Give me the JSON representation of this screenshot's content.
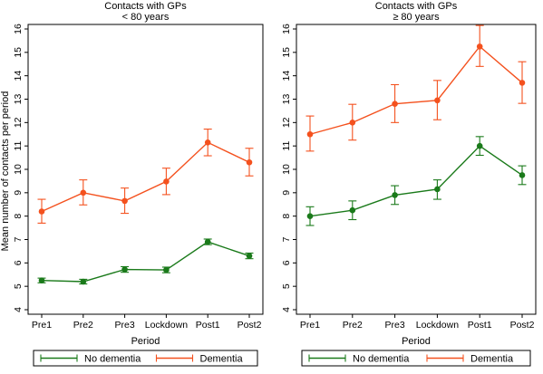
{
  "figure": {
    "ylabel": "Mean number of contacts per period"
  },
  "chart_data": [
    {
      "type": "line",
      "title": "Contacts with GPs",
      "subtitle": "< 80 years",
      "xlabel": "Period",
      "ylabel": "Mean number of contacts per period",
      "categories": [
        "Pre1",
        "Pre2",
        "Pre3",
        "Lockdown",
        "Post1",
        "Post2"
      ],
      "ylim": [
        4,
        16
      ],
      "yticks": [
        4,
        5,
        6,
        7,
        8,
        9,
        10,
        11,
        12,
        13,
        14,
        15,
        16
      ],
      "grid": false,
      "legend": "bottom",
      "series": [
        {
          "name": "No dementia",
          "color": "#1a7a1a",
          "values": [
            5.25,
            5.2,
            5.72,
            5.7,
            6.9,
            6.3
          ],
          "lower": [
            5.15,
            5.1,
            5.6,
            5.58,
            6.78,
            6.18
          ],
          "upper": [
            5.35,
            5.3,
            5.84,
            5.82,
            7.02,
            6.42
          ]
        },
        {
          "name": "Dementia",
          "color": "#f4511e",
          "values": [
            8.2,
            9.0,
            8.65,
            9.48,
            11.15,
            10.3
          ],
          "lower": [
            7.7,
            8.48,
            8.12,
            8.92,
            10.58,
            9.72
          ],
          "upper": [
            8.72,
            9.55,
            9.2,
            10.05,
            11.72,
            10.9
          ]
        }
      ]
    },
    {
      "type": "line",
      "title": "Contacts with GPs",
      "subtitle": "≥ 80 years",
      "xlabel": "Period",
      "ylabel": "",
      "categories": [
        "Pre1",
        "Pre2",
        "Pre3",
        "Lockdown",
        "Post1",
        "Post2"
      ],
      "ylim": [
        4,
        16
      ],
      "yticks": [
        4,
        5,
        6,
        7,
        8,
        9,
        10,
        11,
        12,
        13,
        14,
        15,
        16
      ],
      "grid": false,
      "legend": "bottom",
      "series": [
        {
          "name": "No dementia",
          "color": "#1a7a1a",
          "values": [
            8.0,
            8.25,
            8.9,
            9.15,
            11.0,
            9.75
          ],
          "lower": [
            7.6,
            7.85,
            8.5,
            8.72,
            10.6,
            9.35
          ],
          "upper": [
            8.4,
            8.65,
            9.3,
            9.55,
            11.4,
            10.15
          ]
        },
        {
          "name": "Dementia",
          "color": "#f4511e",
          "values": [
            11.5,
            12.0,
            12.8,
            12.95,
            15.25,
            13.7
          ],
          "lower": [
            10.78,
            11.25,
            12.0,
            12.12,
            14.4,
            12.82
          ],
          "upper": [
            12.28,
            12.78,
            13.62,
            13.8,
            16.15,
            14.6
          ]
        }
      ]
    }
  ]
}
